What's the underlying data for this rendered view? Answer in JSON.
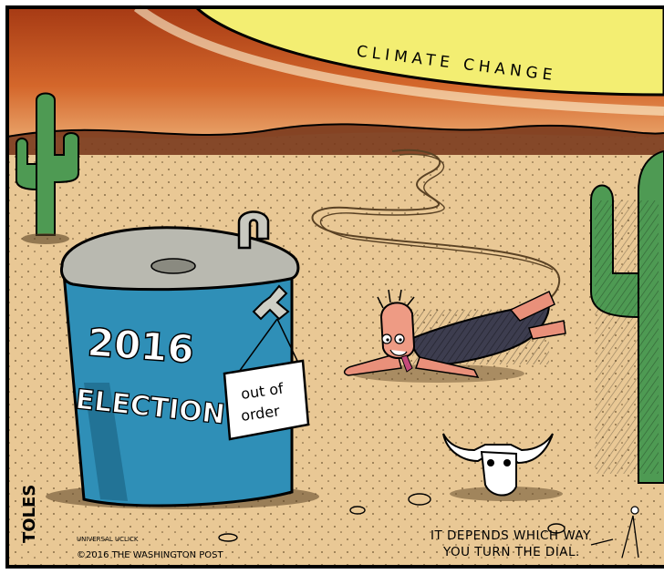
{
  "sky": {
    "label": "CLIMATE CHANGE",
    "sun_color": "#f3ee72",
    "glow_color": "#c2481e"
  },
  "desert": {
    "sand_color": "#e9c895"
  },
  "fountain": {
    "body_color": "#2f8fb7",
    "line1": "2016",
    "line2": "ELECTION",
    "sign_line1": "out of",
    "sign_line2": "order"
  },
  "caption": {
    "line1": "IT DEPENDS WHICH WAY",
    "line2": "YOU TURN THE DIAL."
  },
  "signature": {
    "name": "TOLES",
    "syndicate": "UNIVERSAL UCLICK",
    "copyright": "©2016 THE WASHINGTON POST"
  }
}
